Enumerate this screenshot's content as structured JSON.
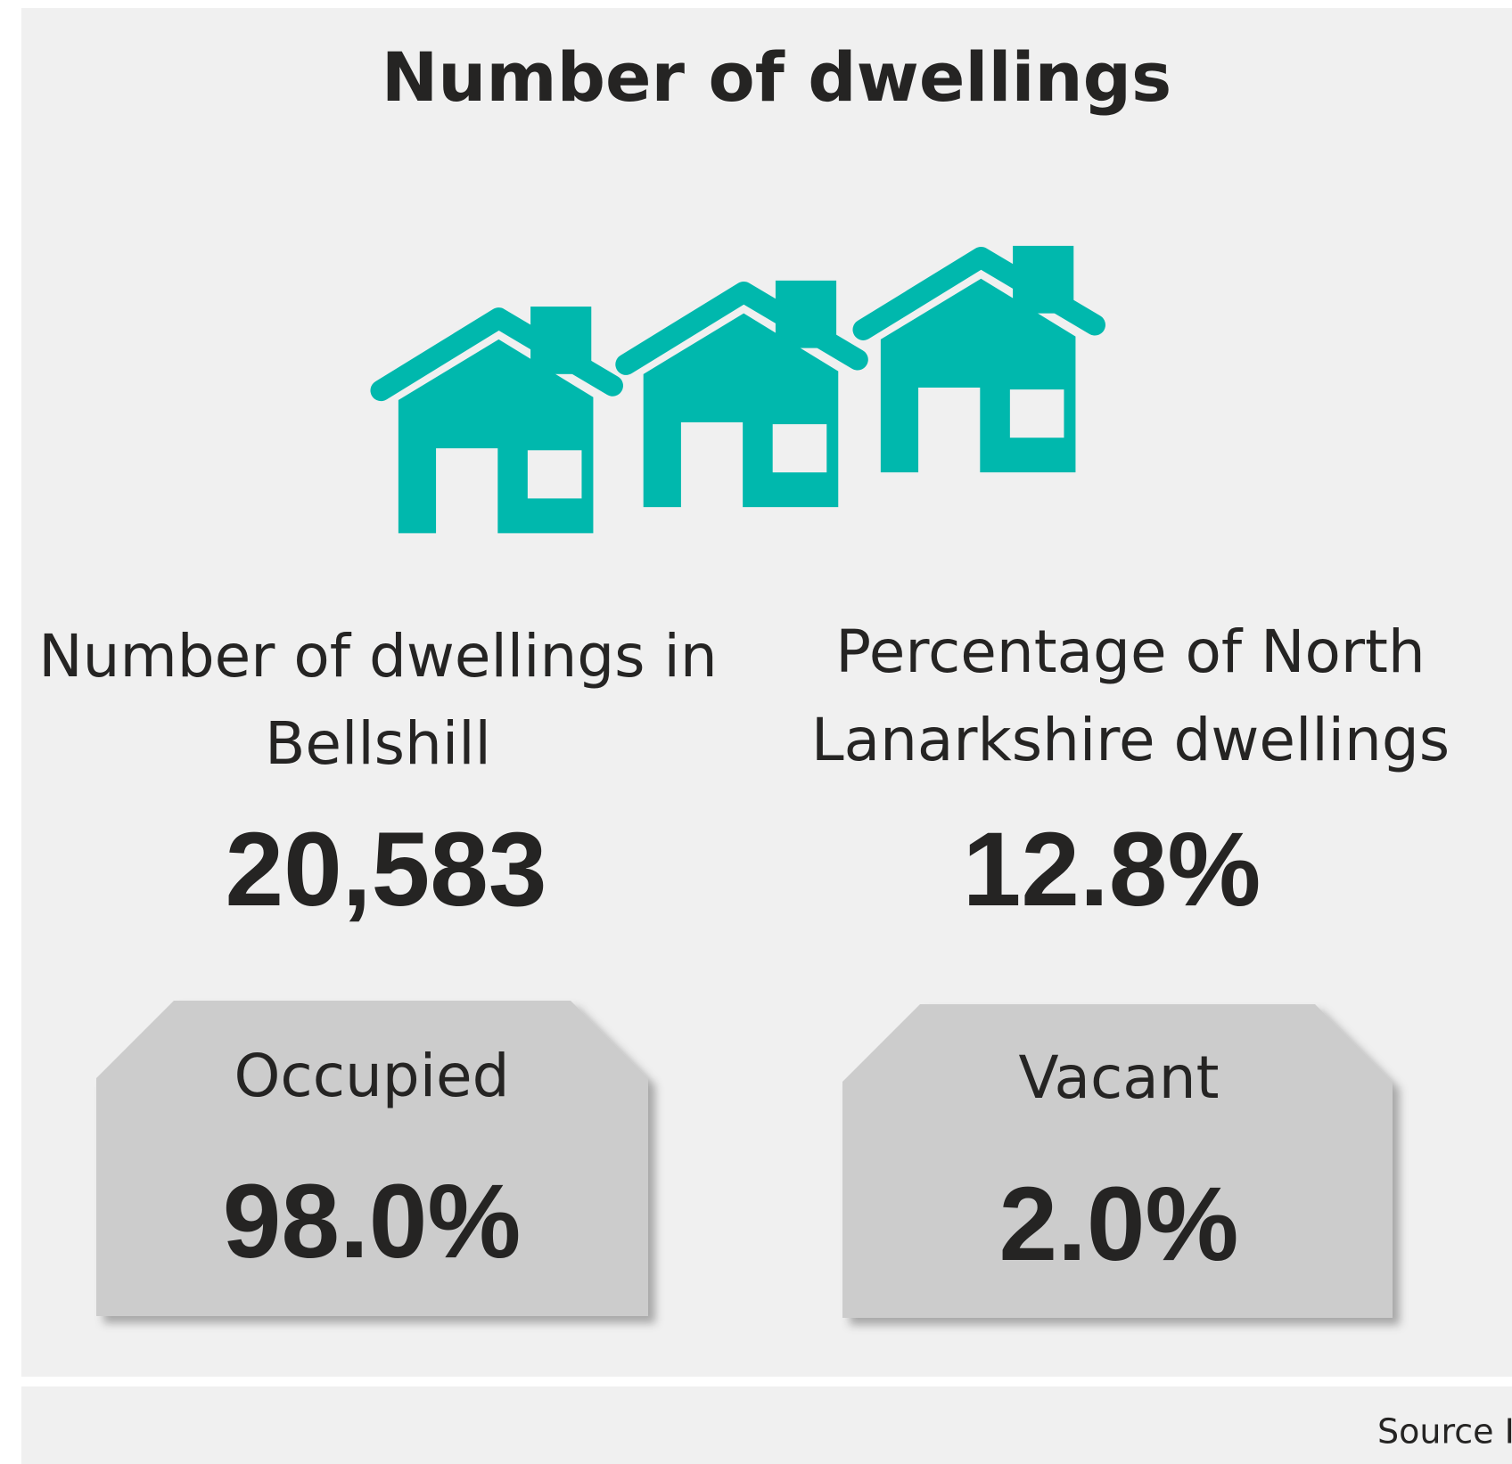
{
  "title": "Number of dwellings",
  "stats": [
    {
      "label_lines": [
        "Number of dwellings in",
        "Bellshill"
      ],
      "value": "20,583"
    },
    {
      "label_lines": [
        "Percentage of North",
        "Lanarkshire dwellings"
      ],
      "value": "12.8%"
    }
  ],
  "cards": [
    {
      "label": "Occupied",
      "value": "98.0%"
    },
    {
      "label": "Vacant",
      "value": "2.0%"
    }
  ],
  "footer": {
    "source": "Source I"
  }
}
